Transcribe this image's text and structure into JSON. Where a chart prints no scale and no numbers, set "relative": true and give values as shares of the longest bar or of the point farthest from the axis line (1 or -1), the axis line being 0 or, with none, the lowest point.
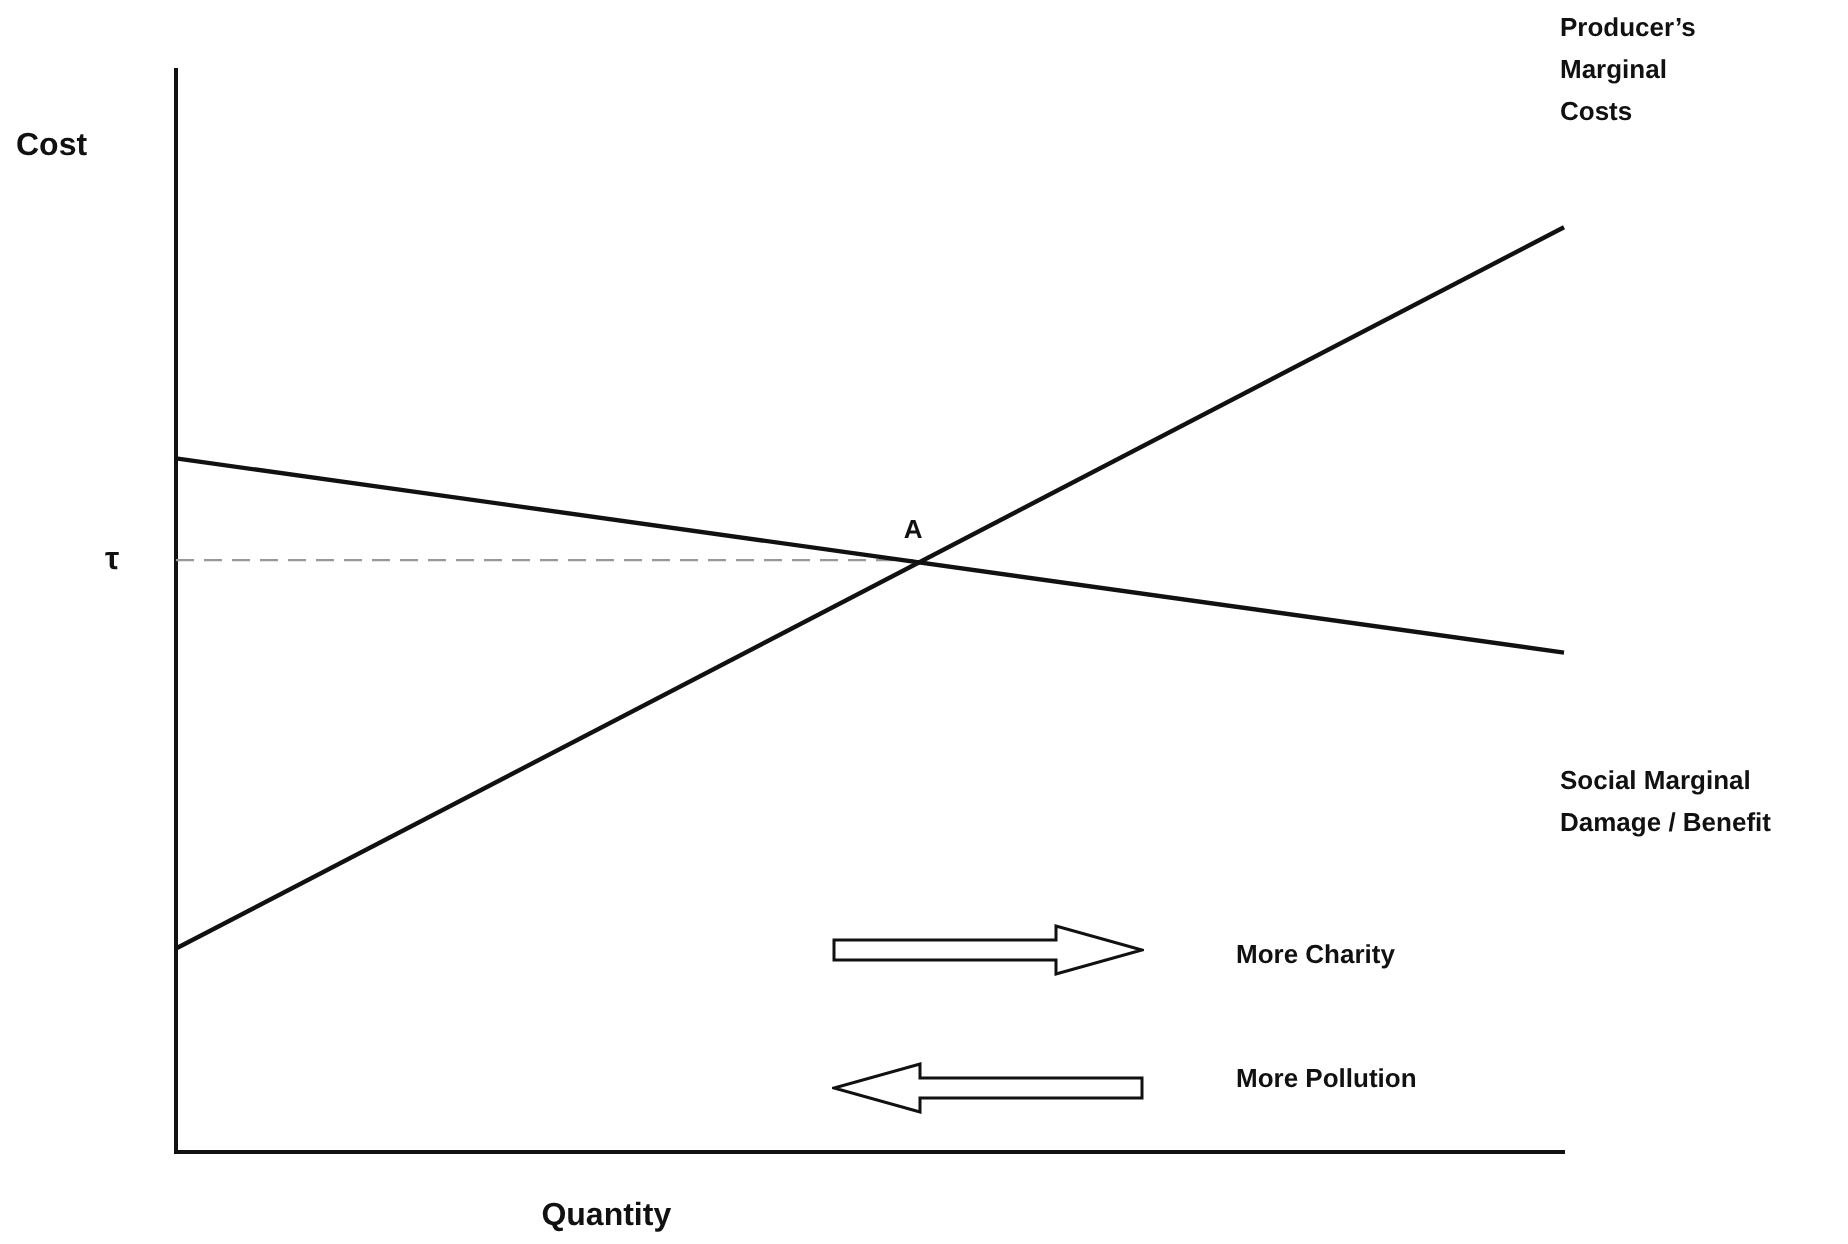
{
  "chart_data": {
    "type": "line",
    "relative": true,
    "xlabel": "Quantity",
    "ylabel": "Cost",
    "categories": [
      null,
      null
    ],
    "series": [
      {
        "name": "Producer’s Marginal Costs",
        "color": "#111111",
        "values": [
          0.22,
          1
        ]
      },
      {
        "name": "Social Marginal Damage / Benefit",
        "color": "#111111",
        "values": [
          0.75,
          0.54
        ]
      }
    ],
    "ref_lines": [
      {
        "axis": "y",
        "value": 0.64,
        "label": "τ",
        "color": "#999999",
        "line_style": "dashed"
      }
    ],
    "annotations": [
      {
        "text": "A",
        "y": 0.64
      },
      "More Charity",
      "More Pollution"
    ]
  }
}
